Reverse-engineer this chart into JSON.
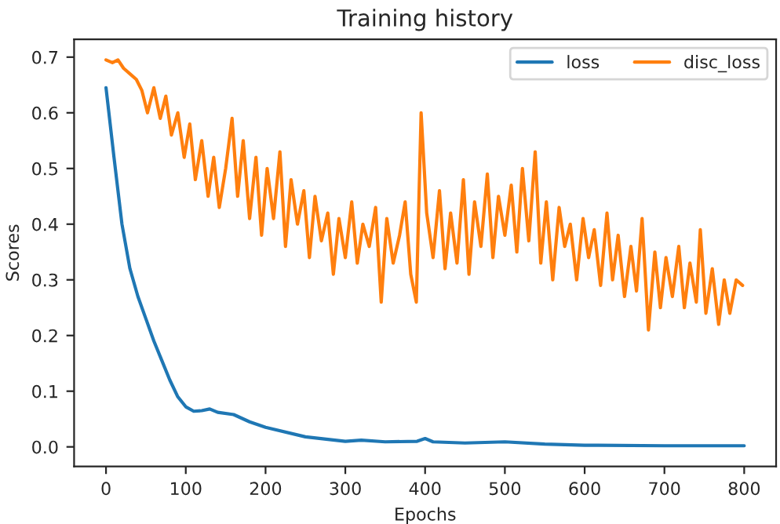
{
  "chart_data": {
    "type": "line",
    "title": "Training history",
    "xlabel": "Epochs",
    "ylabel": "Scores",
    "xlim": [
      -40,
      840
    ],
    "ylim": [
      -0.035,
      0.732
    ],
    "xticks": [
      0,
      100,
      200,
      300,
      400,
      500,
      600,
      700,
      800
    ],
    "yticks": [
      {
        "value": 0,
        "label": "0.0"
      },
      0.1,
      0.2,
      0.3,
      0.4,
      0.5,
      0.6,
      0.7
    ],
    "legend": "top right",
    "grid": false,
    "series": [
      {
        "name": "loss",
        "color": "#1f77b4",
        "x": [
          0,
          10,
          20,
          30,
          40,
          50,
          60,
          70,
          80,
          90,
          100,
          110,
          120,
          130,
          140,
          160,
          180,
          200,
          250,
          300,
          320,
          350,
          390,
          400,
          410,
          450,
          500,
          550,
          600,
          700,
          800
        ],
        "values": [
          0.645,
          0.52,
          0.4,
          0.32,
          0.27,
          0.23,
          0.19,
          0.155,
          0.12,
          0.09,
          0.072,
          0.064,
          0.065,
          0.068,
          0.062,
          0.058,
          0.045,
          0.035,
          0.018,
          0.01,
          0.012,
          0.009,
          0.01,
          0.015,
          0.009,
          0.007,
          0.009,
          0.005,
          0.003,
          0.002,
          0.002
        ]
      },
      {
        "name": "disc_loss",
        "color": "#ff7f0e",
        "x": [
          0,
          8,
          15,
          22,
          30,
          38,
          45,
          52,
          60,
          68,
          75,
          82,
          90,
          98,
          105,
          112,
          120,
          128,
          135,
          142,
          150,
          158,
          165,
          172,
          180,
          188,
          195,
          202,
          210,
          218,
          225,
          232,
          240,
          248,
          255,
          262,
          270,
          278,
          285,
          292,
          300,
          308,
          315,
          322,
          330,
          338,
          345,
          352,
          360,
          368,
          375,
          382,
          389,
          395,
          402,
          410,
          418,
          425,
          432,
          440,
          448,
          455,
          462,
          470,
          478,
          485,
          492,
          500,
          508,
          515,
          522,
          530,
          538,
          545,
          552,
          560,
          568,
          575,
          582,
          590,
          598,
          605,
          612,
          620,
          628,
          635,
          642,
          650,
          658,
          665,
          672,
          680,
          688,
          695,
          702,
          710,
          718,
          725,
          732,
          740,
          745,
          752,
          760,
          768,
          775,
          782,
          790,
          798
        ],
        "values": [
          0.695,
          0.69,
          0.695,
          0.68,
          0.67,
          0.66,
          0.64,
          0.6,
          0.645,
          0.59,
          0.63,
          0.56,
          0.6,
          0.52,
          0.58,
          0.48,
          0.55,
          0.45,
          0.52,
          0.43,
          0.5,
          0.59,
          0.45,
          0.55,
          0.41,
          0.52,
          0.38,
          0.5,
          0.41,
          0.53,
          0.36,
          0.48,
          0.4,
          0.46,
          0.34,
          0.45,
          0.37,
          0.42,
          0.31,
          0.41,
          0.34,
          0.44,
          0.33,
          0.4,
          0.36,
          0.43,
          0.26,
          0.41,
          0.33,
          0.38,
          0.44,
          0.31,
          0.26,
          0.6,
          0.42,
          0.34,
          0.46,
          0.32,
          0.42,
          0.33,
          0.48,
          0.31,
          0.44,
          0.36,
          0.49,
          0.34,
          0.45,
          0.38,
          0.47,
          0.35,
          0.5,
          0.37,
          0.53,
          0.33,
          0.44,
          0.3,
          0.43,
          0.36,
          0.4,
          0.3,
          0.41,
          0.34,
          0.39,
          0.29,
          0.42,
          0.3,
          0.38,
          0.27,
          0.36,
          0.28,
          0.41,
          0.21,
          0.35,
          0.25,
          0.34,
          0.27,
          0.36,
          0.25,
          0.33,
          0.26,
          0.39,
          0.24,
          0.32,
          0.22,
          0.3,
          0.24,
          0.3,
          0.29
        ]
      }
    ]
  }
}
